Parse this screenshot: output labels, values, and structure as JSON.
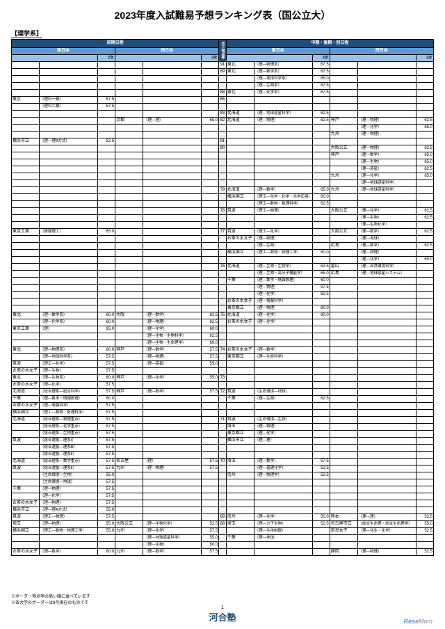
{
  "title": "2023年度入試難易予想ランキング表（国公立大）",
  "subtitle": "【理学系】",
  "headers": {
    "zenki": "前期日程",
    "chuki": "中期・後期・別日程",
    "east": "東日本",
    "west": "西日本",
    "niji": "2次",
    "rate": "共テ得点率"
  },
  "rows": [
    {
      "r": "91",
      "c3u": "東北",
      "c3d": "（理―物理系）",
      "c3v": "67.5"
    },
    {
      "r": "89",
      "c3u": "東北",
      "c3d": "（理―数学系）",
      "c3v": "67.5"
    },
    {
      "r": "",
      "c3d": "（理―地球科学系）",
      "c3v": "65.0"
    },
    {
      "r": "",
      "c3d": "（理―生物系）",
      "c3v": "67.5"
    },
    {
      "r": "88",
      "c3u": "東北",
      "c3d": "（理―化学系）",
      "c3v": "67.5"
    },
    {
      "r": "85",
      "c1u": "東京",
      "c1d": "（理科一類）",
      "c1v": "67.5"
    },
    {
      "r": "",
      "c1d": "（理科二類）",
      "c1v": "67.5"
    },
    {
      "r": "83",
      "c3u": "北海道",
      "c3d": "（理―地球惑星科学）",
      "c3v": "62.5"
    },
    {
      "r": "82",
      "c2u": "京都",
      "c2d": "（理―理）",
      "c2v": "65.0",
      "c3u": "北海道",
      "c3d": "（理―物理）",
      "c3v": "62.5",
      "c4u": "神戸",
      "c4d": "（理―物理）",
      "c4v": "62.5"
    },
    {
      "r": "",
      "c4d": "（理―化学）",
      "c4v": "65.0"
    },
    {
      "r": "",
      "c4u": "九州",
      "c4d": "（理―物理）"
    },
    {
      "r": "81",
      "c1u": "横浜市立",
      "c1d": "（理―理B方式）",
      "c1v": "52.5"
    },
    {
      "r": "80",
      "c4u": "大阪公立",
      "c4d": "（理―物理）",
      "c4v": "62.5"
    },
    {
      "r": "",
      "c4u": "神戸",
      "c4d": "（理―数学）",
      "c4v": "65.0"
    },
    {
      "r": "",
      "c4d": "（理―生物）",
      "c4v": "65.0"
    },
    {
      "r": "",
      "c4d": "（理―惑星）",
      "c4v": "62.5"
    },
    {
      "r": "",
      "c4u": "九州",
      "c4d": "（理―化学）",
      "c4v": "65.0"
    },
    {
      "r": "",
      "c4d": "（理―地球惑星科学）"
    },
    {
      "r": "79",
      "c3u": "北海道",
      "c3d": "（理―数学）",
      "c3v": "65.0",
      "c4u": "九州",
      "c4d": "（理―地球惑星科学）"
    },
    {
      "r": "",
      "c3u": "横浜国立",
      "c3d": "（理工―化学・化学・化学応用）",
      "c3v": "60.0"
    },
    {
      "r": "",
      "c3d": "（理工―数物・数理科学）",
      "c3v": "62.5"
    },
    {
      "r": "78",
      "c3u": "筑波",
      "c3d": "（理工―物理）",
      "c4u": "大阪公立",
      "c4d": "（理―化学）",
      "c4v": "62.5"
    },
    {
      "r": "",
      "c4d": "（理―生物）",
      "c4v": "62.5"
    },
    {
      "r": "",
      "c4d": "（理―生物化学）"
    },
    {
      "r": "77",
      "c1u": "東京工業",
      "c1d": "（情報理工）",
      "c1v": "65.0",
      "c3u": "筑波",
      "c3d": "（理工―化学）",
      "c4u": "大阪公立",
      "c4d": "（理―数学）",
      "c4v": "62.5"
    },
    {
      "r": "",
      "c3u": "お茶の水女子",
      "c3d": "（理―物理）",
      "c4d": "（理―地球）"
    },
    {
      "r": "",
      "c3d": "（理―生物）",
      "c4u": "広島",
      "c4d": "（理―数学）",
      "c4v": "62.5"
    },
    {
      "r": "",
      "c3u": "横浜国立",
      "c3d": "（理工―数物・物理工学）",
      "c3v": "60.0",
      "c4d": "（理―物理）"
    },
    {
      "r": "",
      "c4d": "（理―化学）",
      "c4v": "60.0"
    },
    {
      "r": "76",
      "c3u": "北海道",
      "c3d": "（理―生物・生物学）",
      "c3v": "62.5",
      "c4u": "富山",
      "c4d": "（理―自然環境科学）"
    },
    {
      "r": "",
      "c3d": "（理―生物・高分子機能学）",
      "c3v": "65.0",
      "c4u": "広島",
      "c4d": "（理―地球惑星システム）"
    },
    {
      "r": "",
      "c3u": "千葉",
      "c3d": "（理―数学・情報数理）",
      "c3v": "60.0"
    },
    {
      "r": "",
      "c3d": "（理―物理）",
      "c3v": "57.5"
    },
    {
      "r": "",
      "c3d": "（理―化学）",
      "c3v": "62.5"
    },
    {
      "r": "",
      "c3u": "お茶の水女子",
      "c3d": "（理―情報科学）"
    },
    {
      "r": "",
      "c3u": "東京都立",
      "c3d": "（理―物理）",
      "c3v": "60.0"
    },
    {
      "r": "75",
      "c1u": "東北",
      "c1d": "（理―数学系）",
      "c1v": "60.0",
      "c2u": "大阪",
      "c2d": "（理―数学）",
      "c2v": "62.5",
      "c3u": "北海道",
      "c3d": "（理―化学）",
      "c3v": "60.0"
    },
    {
      "r": "",
      "c1d": "（理―化学系）",
      "c1v": "60.0",
      "c2d": "（理―物理）",
      "c2v": "62.5",
      "c3u": "お茶の水女子",
      "c3d": "（理―化学）"
    },
    {
      "r": "",
      "c1u": "東京工業",
      "c1d": "（理）",
      "c1v": "65.0",
      "c2d": "（理―化学）",
      "c2v": "60.0"
    },
    {
      "r": "",
      "c2d": "（理―生物・生物科学）",
      "c2v": "62.5"
    },
    {
      "r": "",
      "c2d": "（理―生物・生命理学）",
      "c2v": "60.0"
    },
    {
      "r": "74",
      "c1u": "東北",
      "c1d": "（理―物理系）",
      "c1v": "60.0",
      "c2u": "神戸",
      "c2d": "（理―数学）",
      "c2v": "57.5",
      "c3u": "お茶の水女子",
      "c3d": "（理―数学）"
    },
    {
      "r": "",
      "c1d": "（理―地球科学系）",
      "c1v": "57.5",
      "c2d": "（理―物理）",
      "c2v": "57.5",
      "c3u": "東京都立",
      "c3d": "（理―生命科学）"
    },
    {
      "r": "",
      "c1u": "筑波",
      "c1d": "（理工―化学）",
      "c1v": "57.5",
      "c2d": "（理―惑星）",
      "c2v": "55.0"
    },
    {
      "r": "",
      "c1u": "お茶の水女子",
      "c1d": "（理―生物）",
      "c1v": "57.5"
    },
    {
      "r": "73",
      "c1u": "東北",
      "c1d": "（理―生物系）",
      "c1v": "60.0",
      "c2u": "神戸",
      "c2d": "（理―化学）",
      "c2v": "55.0"
    },
    {
      "r": "",
      "c1u": "お茶の水女子",
      "c1d": "（理―化学）",
      "c1v": "57.5"
    },
    {
      "r": "72",
      "c1u": "北海道",
      "c1d": "（総合理系―総合科学）",
      "c1v": "57.5",
      "c2u": "神戸",
      "c2d": "（理―数学）",
      "c2v": "57.5",
      "c3u": "筑波",
      "c3d": "（生命環境―地球）"
    },
    {
      "r": "",
      "c1u": "千葉",
      "c1d": "（理―数学・情報数理）",
      "c1v": "60.0",
      "c3u": "千葉",
      "c3d": "（理―生物）",
      "c3v": "62.5"
    },
    {
      "r": "",
      "c1u": "お茶の水女子",
      "c1d": "（理―情報科学）",
      "c1v": "57.5"
    },
    {
      "r": "",
      "c1u": "横浜国立",
      "c1d": "（理工―数物・数理科学）",
      "c1v": "57.5"
    },
    {
      "r": "71",
      "c1u": "北海道",
      "c1d": "（総合理系―物理重点）",
      "c1v": "57.5",
      "c3u": "筑波",
      "c3d": "（生命環境―生物）"
    },
    {
      "r": "",
      "c1d": "（総合理系―化学重点）",
      "c1v": "57.5",
      "c3u": "埼玉",
      "c3d": "（理―物理）"
    },
    {
      "r": "",
      "c1d": "（総合理系―生物重点）",
      "c1v": "57.5",
      "c3u": "東京都立",
      "c3d": "（理―化学）"
    },
    {
      "r": "",
      "c1u": "筑波",
      "c1d": "（総合選抜―理系Ⅰ）",
      "c1v": "57.5",
      "c3u": "横浜市立",
      "c3d": "（理―理）"
    },
    {
      "r": "",
      "c1d": "（総合選抜―理系Ⅲ）",
      "c1v": "57.5"
    },
    {
      "r": "",
      "c1d": "（総合選抜―理系Ⅱ）",
      "c1v": "57.5"
    },
    {
      "r": "70",
      "c1u": "北海道",
      "c1d": "（総合理系―数学重点）",
      "c1v": "57.5",
      "c2u": "名古屋",
      "c2d": "（理）",
      "c2v": "57.5",
      "c3u": "埼玉",
      "c3d": "（理―数学）",
      "c3v": "57.5"
    },
    {
      "r": "",
      "c1u": "筑波",
      "c1d": "（総合選抜―理系Ⅱ）",
      "c1v": "57.5",
      "c2u": "九州",
      "c2d": "（理―物理）",
      "c2v": "57.5",
      "c3d": "（理―基礎化学）",
      "c3v": "52.5"
    },
    {
      "r": "",
      "c1d": "（生命環境―生物）",
      "c1v": "55.0",
      "c3u": "信州",
      "c3d": "（理―物理学）",
      "c3v": "52.5"
    },
    {
      "r": "",
      "c1d": "（生命環境―地球）",
      "c1v": "57.5"
    },
    {
      "r": "",
      "c1u": "千葉",
      "c1d": "（理―物理）",
      "c1v": "57.5"
    },
    {
      "r": "",
      "c1d": "（理―化学）",
      "c1v": "57.5"
    },
    {
      "r": "",
      "c1u": "お茶の水女子",
      "c1d": "（理―物理）",
      "c1v": "57.5"
    },
    {
      "r": "",
      "c1u": "横浜市立",
      "c1d": "（理―理A方式）",
      "c1v": "55.0"
    },
    {
      "r": "69",
      "c1u": "筑波",
      "c1d": "（理工―物理）",
      "c1v": "57.5",
      "c3u": "信州",
      "c3d": "（理―化学）",
      "c3v": "50.0",
      "c4u": "熊本",
      "c4d": "（理―理）",
      "c4v": "52.5"
    },
    {
      "r": "68",
      "c1u": "埼玉",
      "c1d": "（理―物理）",
      "c1v": "55.0",
      "c2u": "大阪公立",
      "c2d": "（理―生物化学）",
      "c2v": "52.5",
      "c3u": "埼玉",
      "c3d": "（理―分子生物）",
      "c3v": "52.5",
      "c4u": "名古屋市立",
      "c4d": "（総合生命理・総合生命理学）",
      "c4v": "55.0"
    },
    {
      "r": "",
      "c1u": "横浜国立",
      "c1d": "（理工―数物・物理工学）",
      "c1v": "55.0",
      "c2u": "九州",
      "c2d": "（理―化学）",
      "c2v": "57.5",
      "c3d": "（理―生体制御）",
      "c4u": "奈良女子",
      "c4d": "（理―化生・化学）",
      "c4v": "52.5"
    },
    {
      "r": "",
      "c2d": "（理―地球惑星科学）",
      "c2v": "55.0",
      "c3u": "千葉",
      "c3d": "（理―地球）"
    },
    {
      "r": "",
      "c2d": "（理―生物）",
      "c2v": "60.0"
    },
    {
      "r": "",
      "c1u": "お茶の水女子",
      "c1d": "（理―数学）",
      "c1v": "60.0",
      "c2u": "九州",
      "c2d": "（理―数学）",
      "c2v": "57.5",
      "c4u": "静岡",
      "c4d": "（理―物理）",
      "c4v": "52.5"
    }
  ],
  "footer": {
    "page": "1",
    "logo": "河合塾",
    "note1": "※ボーダー得点率の高い順に並べています",
    "note2": "※各大学のボーダーは9月現在のものです",
    "watermark": "ReseMom"
  }
}
